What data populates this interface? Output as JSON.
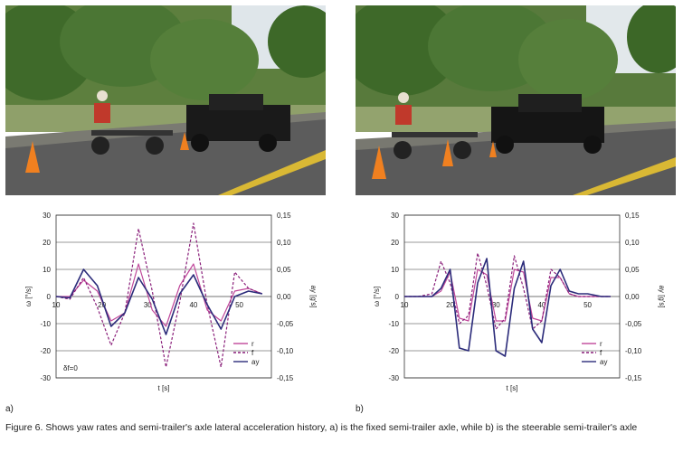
{
  "figure": {
    "caption": "Figure 6. Shows yaw rates and semi-trailer's axle lateral acceleration history, a) is the fixed semi-trailer axle, while b) is the steerable semi-trailer's axle",
    "panel_a_label": "a)",
    "panel_b_label": "b)",
    "photo_a_description": "photo",
    "photo_b_description": "photo"
  },
  "chart_data": [
    {
      "type": "line",
      "panel": "a",
      "xlabel": "t [s]",
      "ylabel": "ω [°/s]",
      "y2label": "ay [g's]",
      "xlim": [
        10,
        57
      ],
      "ylim": [
        -30,
        30
      ],
      "y2lim": [
        -0.15,
        0.15
      ],
      "x_ticks": [
        "10",
        "20",
        "30",
        "40",
        "50"
      ],
      "y_ticks": [
        "30",
        "20",
        "10",
        "0",
        "-10",
        "-20",
        "-30"
      ],
      "y2_ticks": [
        "0,15",
        "0,10",
        "0,05",
        "0,00",
        "-0,05",
        "-0,10",
        "-0,15"
      ],
      "annotation": "δf=0",
      "legend": [
        "r",
        "f",
        "ay"
      ],
      "legend_position": "bottom-right",
      "series": [
        {
          "name": "r",
          "color": "#c0479a",
          "style": "solid",
          "x": [
            10,
            13,
            16,
            19,
            22,
            25,
            28,
            31,
            34,
            37,
            40,
            43,
            46,
            49,
            52,
            55
          ],
          "y": [
            0,
            0,
            6,
            2,
            -9,
            -6,
            12,
            -5,
            -11,
            4,
            12,
            -5,
            -9,
            2,
            3,
            1
          ]
        },
        {
          "name": "f",
          "color": "#8a1f7a",
          "style": "dashed",
          "x": [
            10,
            13,
            16,
            19,
            22,
            25,
            28,
            31,
            34,
            37,
            40,
            43,
            46,
            49,
            52,
            55
          ],
          "y": [
            0,
            -1,
            7,
            -4,
            -18,
            -6,
            25,
            2,
            -26,
            -2,
            27,
            -3,
            -26,
            9,
            3,
            1
          ]
        },
        {
          "name": "ay",
          "color": "#2b2b7a",
          "style": "solid",
          "x": [
            10,
            13,
            16,
            19,
            22,
            25,
            28,
            31,
            34,
            37,
            40,
            43,
            46,
            49,
            52,
            55
          ],
          "y": [
            0,
            -0.5,
            10,
            4,
            -11,
            -6,
            7,
            -1,
            -14,
            1,
            8,
            -3,
            -12,
            0,
            2,
            1
          ]
        }
      ]
    },
    {
      "type": "line",
      "panel": "b",
      "xlabel": "t [s]",
      "ylabel": "ω [°/s]",
      "y2label": "ay [g's]",
      "xlim": [
        10,
        57
      ],
      "ylim": [
        -30,
        30
      ],
      "y2lim": [
        -0.15,
        0.15
      ],
      "x_ticks": [
        "10",
        "20",
        "30",
        "40",
        "50"
      ],
      "y_ticks": [
        "30",
        "20",
        "10",
        "0",
        "-10",
        "-20",
        "-30"
      ],
      "y2_ticks": [
        "0,15",
        "0,10",
        "0,05",
        "0,00",
        "-0,05",
        "-0,10",
        "-0,15"
      ],
      "legend": [
        "r",
        "f",
        "ay"
      ],
      "legend_position": "bottom-right",
      "series": [
        {
          "name": "r",
          "color": "#c0479a",
          "style": "solid",
          "x": [
            10,
            13,
            16,
            18,
            20,
            22,
            24,
            26,
            28,
            30,
            32,
            34,
            36,
            38,
            40,
            42,
            44,
            46,
            48,
            50,
            53,
            55
          ],
          "y": [
            0,
            0,
            0,
            2,
            9,
            -8,
            -9,
            10,
            8,
            -9,
            -9,
            10,
            9,
            -8,
            -9,
            7,
            7,
            1,
            0,
            0,
            0,
            0
          ]
        },
        {
          "name": "f",
          "color": "#8a1f7a",
          "style": "dashed",
          "x": [
            10,
            13,
            16,
            18,
            20,
            22,
            24,
            26,
            28,
            30,
            32,
            34,
            36,
            38,
            40,
            42,
            44,
            46,
            48,
            50,
            53,
            55
          ],
          "y": [
            0,
            0,
            1,
            13,
            5,
            -10,
            -7,
            16,
            4,
            -12,
            -8,
            15,
            3,
            -12,
            -9,
            10,
            7,
            1,
            0,
            0,
            0,
            0
          ]
        },
        {
          "name": "ay",
          "color": "#2b2b7a",
          "style": "solid",
          "x": [
            10,
            13,
            16,
            18,
            20,
            22,
            24,
            26,
            28,
            30,
            32,
            34,
            36,
            38,
            40,
            42,
            44,
            46,
            48,
            50,
            53,
            55
          ],
          "y": [
            0,
            0,
            0,
            3,
            10,
            -19,
            -20,
            5,
            14,
            -20,
            -22,
            3,
            13,
            -12,
            -17,
            4,
            10,
            2,
            1,
            1,
            0,
            0
          ]
        }
      ]
    }
  ]
}
